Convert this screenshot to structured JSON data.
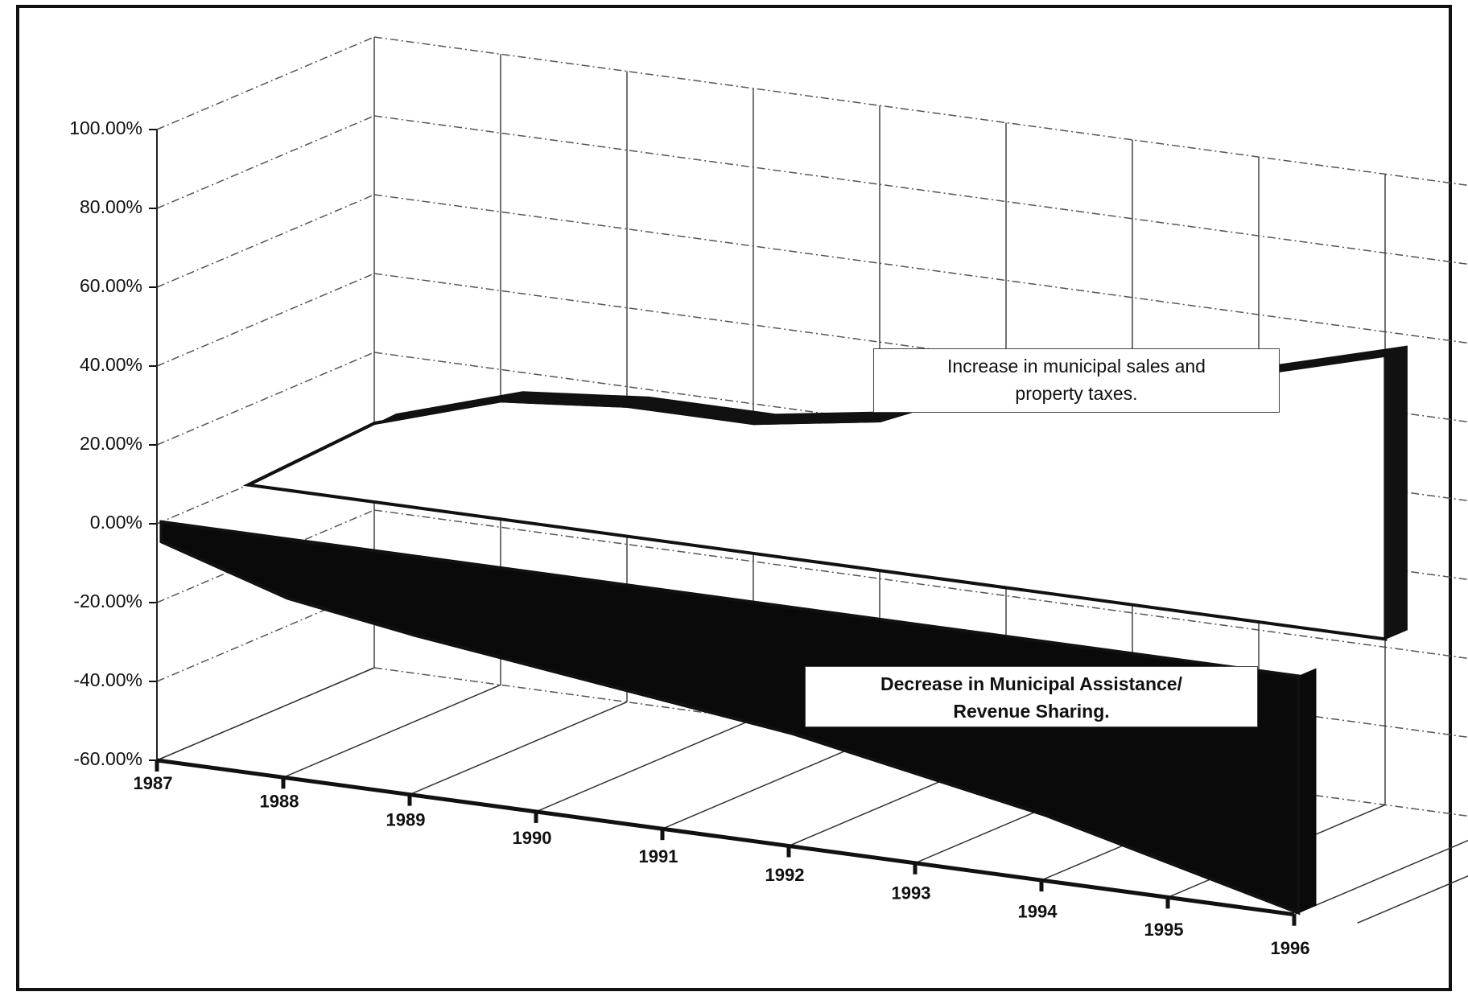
{
  "chart_data": {
    "type": "area3d",
    "categories": [
      "1987",
      "1988",
      "1989",
      "1990",
      "1991",
      "1992",
      "1993",
      "1994",
      "1995",
      "1996"
    ],
    "series": [
      {
        "name": "Increase in municipal sales and property taxes.",
        "color": "#111111",
        "values": [
          0,
          20,
          30,
          33,
          33,
          38,
          52,
          60,
          63,
          72
        ]
      },
      {
        "name": "Decrease in Municipal Assistance/ Revenue Sharing.",
        "color": "#0a0a0a",
        "values": [
          -5,
          -15,
          -20,
          -24,
          -28,
          -32,
          -38,
          -44,
          -52,
          -60
        ]
      }
    ],
    "ylim": [
      -60,
      100
    ],
    "yticks": [
      {
        "value": -60,
        "label": "-60.00%"
      },
      {
        "value": -40,
        "label": "-40.00%"
      },
      {
        "value": -20,
        "label": "-20.00%"
      },
      {
        "value": 0,
        "label": "0.00%"
      },
      {
        "value": 20,
        "label": "20.00%"
      },
      {
        "value": 40,
        "label": "40.00%"
      },
      {
        "value": 60,
        "label": "60.00%"
      },
      {
        "value": 80,
        "label": "80.00%"
      },
      {
        "value": 100,
        "label": "100.00%"
      }
    ],
    "grid": true
  }
}
